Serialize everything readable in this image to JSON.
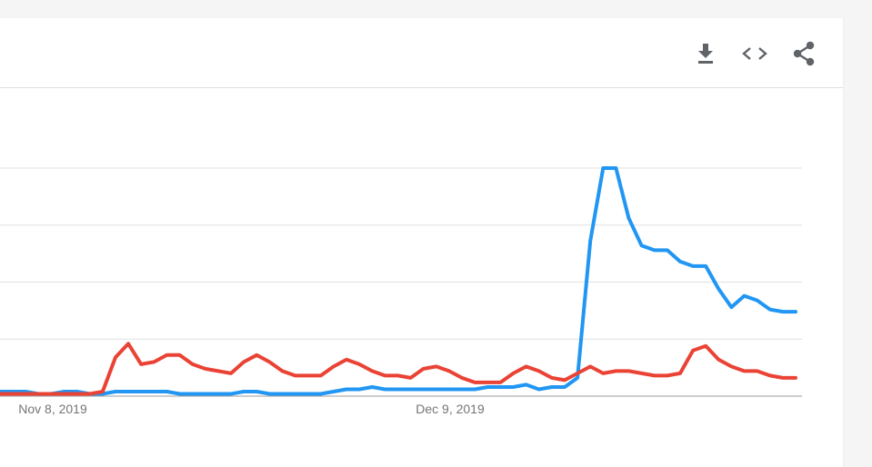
{
  "toolbar": {
    "icons": [
      "download-icon",
      "embed-code-icon",
      "share-icon"
    ]
  },
  "chart_data": {
    "type": "line",
    "x_tick_labels": [
      "Nov 8, 2019",
      "Dec 9, 2019"
    ],
    "ylim": [
      0,
      100
    ],
    "grid": true,
    "series": [
      {
        "color": "#2196f3",
        "values": [
          2,
          2,
          2,
          1,
          1,
          2,
          2,
          1,
          1,
          2,
          2,
          2,
          2,
          2,
          1,
          1,
          1,
          1,
          1,
          2,
          2,
          1,
          1,
          1,
          1,
          1,
          2,
          3,
          3,
          4,
          3,
          3,
          3,
          3,
          3,
          3,
          3,
          3,
          4,
          4,
          4,
          5,
          3,
          4,
          4,
          8,
          68,
          100,
          100,
          78,
          66,
          64,
          64,
          59,
          57,
          57,
          47,
          39,
          44,
          42,
          38,
          37,
          37
        ]
      },
      {
        "color": "#ea4335",
        "values": [
          1,
          1,
          1,
          1,
          1,
          1,
          1,
          1,
          2,
          17,
          23,
          14,
          15,
          18,
          18,
          14,
          12,
          11,
          10,
          15,
          18,
          15,
          11,
          9,
          9,
          9,
          13,
          16,
          14,
          11,
          9,
          9,
          8,
          12,
          13,
          11,
          8,
          6,
          6,
          6,
          10,
          13,
          11,
          8,
          7,
          10,
          13,
          10,
          11,
          11,
          10,
          9,
          9,
          10,
          20,
          22,
          16,
          13,
          11,
          11,
          9,
          8,
          8
        ]
      }
    ]
  }
}
